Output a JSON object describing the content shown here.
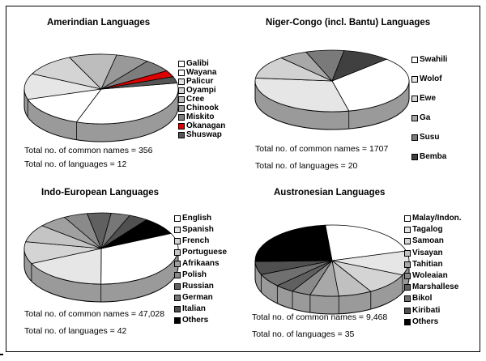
{
  "chart_data": [
    {
      "type": "pie",
      "title": "Amerindian Languages",
      "categories": [
        "Galibi",
        "Wayana",
        "Palicur",
        "Oyampi",
        "Cree",
        "Chinook",
        "Miskito",
        "Okanagan",
        "Shuswap"
      ],
      "values": [
        33,
        15,
        12,
        11,
        10,
        7,
        6,
        3,
        3
      ],
      "colors": [
        "#ffffff",
        "#ffffff",
        "#e6e6e6",
        "#d4d4d4",
        "#bdbdbd",
        "#999999",
        "#7d7d7d",
        "#dd0000",
        "#555555"
      ],
      "stats": [
        "Total no. of common names = 356",
        "Total no. of languages = 12"
      ]
    },
    {
      "type": "pie",
      "title": "Niger-Congo (incl. Bantu) Languages",
      "categories": [
        "Swahili",
        "Wolof",
        "Ewe",
        "Ga",
        "Susu",
        "Bemba"
      ],
      "values": [
        34,
        30,
        12,
        6,
        8,
        10
      ],
      "colors": [
        "#ffffff",
        "#e6e6e6",
        "#d2d2d2",
        "#a8a8a8",
        "#7a7a7a",
        "#404040"
      ],
      "stats": [
        "Total no. of common names = 1707",
        "Total no. of languages = 20"
      ]
    },
    {
      "type": "pie",
      "title": "Indo-European Languages",
      "categories": [
        "English",
        "Spanish",
        "French",
        "Portuguese",
        "Afrikaans",
        "Polish",
        "Russian",
        "German",
        "Italian",
        "Others"
      ],
      "values": [
        32,
        18,
        10,
        8,
        6,
        5,
        5,
        4,
        4,
        8
      ],
      "colors": [
        "#ffffff",
        "#e6e6e6",
        "#d4d4d4",
        "#c4c4c4",
        "#a0a0a0",
        "#8a8a8a",
        "#606060",
        "#777777",
        "#505050",
        "#000000"
      ],
      "stats": [
        "Total no. of common names =  47,028",
        "Total no. of languages = 42"
      ]
    },
    {
      "type": "pie",
      "title": "Austronesian Languages",
      "categories": [
        "Malay/Indon.",
        "Tagalog",
        "Samoan",
        "Visayan",
        "Tahitian",
        "Woleaian",
        "Marshallese",
        "Bikol",
        "Kiribati",
        "Others"
      ],
      "values": [
        22,
        11,
        10,
        7,
        6,
        4,
        4,
        6,
        6,
        24
      ],
      "colors": [
        "#ffffff",
        "#e6e6e6",
        "#d4d4d4",
        "#c0c0c0",
        "#a8a8a8",
        "#8a8a8a",
        "#606060",
        "#707070",
        "#505050",
        "#000000"
      ],
      "stats": [
        "Total no. of common names =    9,468",
        "Total no. of languages = 35"
      ]
    }
  ]
}
